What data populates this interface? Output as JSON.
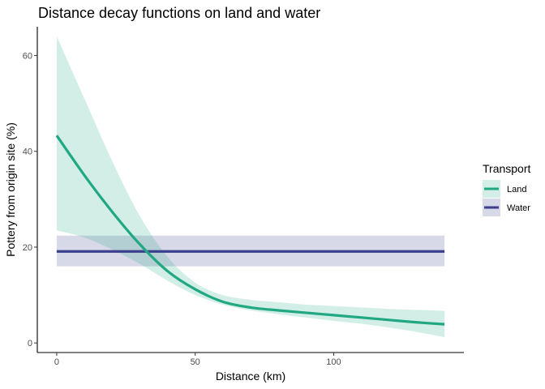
{
  "chart_data": {
    "type": "line",
    "title": "Distance decay functions on land and water",
    "xlabel": "Distance (km)",
    "ylabel": "Pottery from origin site (%)",
    "xlim": [
      -7,
      147
    ],
    "ylim": [
      -2,
      66
    ],
    "x_ticks": [
      0,
      50,
      100
    ],
    "y_ticks": [
      0,
      20,
      40,
      60
    ],
    "grid": false,
    "legend": {
      "title": "Transport",
      "position": "right"
    },
    "series": [
      {
        "name": "Land",
        "color": "#21a883",
        "band_color": "#21a883",
        "x": [
          0,
          10,
          20,
          30,
          40,
          50,
          60,
          70,
          80,
          90,
          100,
          110,
          120,
          130,
          140
        ],
        "y": [
          43.3,
          35.0,
          27.4,
          20.6,
          15.0,
          11.2,
          8.6,
          7.4,
          6.8,
          6.3,
          5.8,
          5.3,
          4.8,
          4.3,
          3.9
        ],
        "lower": [
          23.5,
          22.0,
          19.5,
          16.5,
          13.0,
          10.0,
          8.0,
          6.8,
          6.0,
          5.3,
          4.6,
          4.0,
          3.2,
          2.3,
          1.2
        ],
        "upper": [
          64.0,
          51.0,
          38.0,
          26.5,
          18.0,
          12.6,
          10.0,
          9.0,
          8.5,
          8.0,
          7.7,
          7.4,
          7.1,
          6.9,
          6.7
        ]
      },
      {
        "name": "Water",
        "color": "#3b3f8c",
        "band_color": "#3b3f8c",
        "x": [
          0,
          140
        ],
        "y": [
          19.1,
          19.1
        ],
        "lower": [
          16.0,
          16.0
        ],
        "upper": [
          22.4,
          22.4
        ]
      }
    ]
  }
}
